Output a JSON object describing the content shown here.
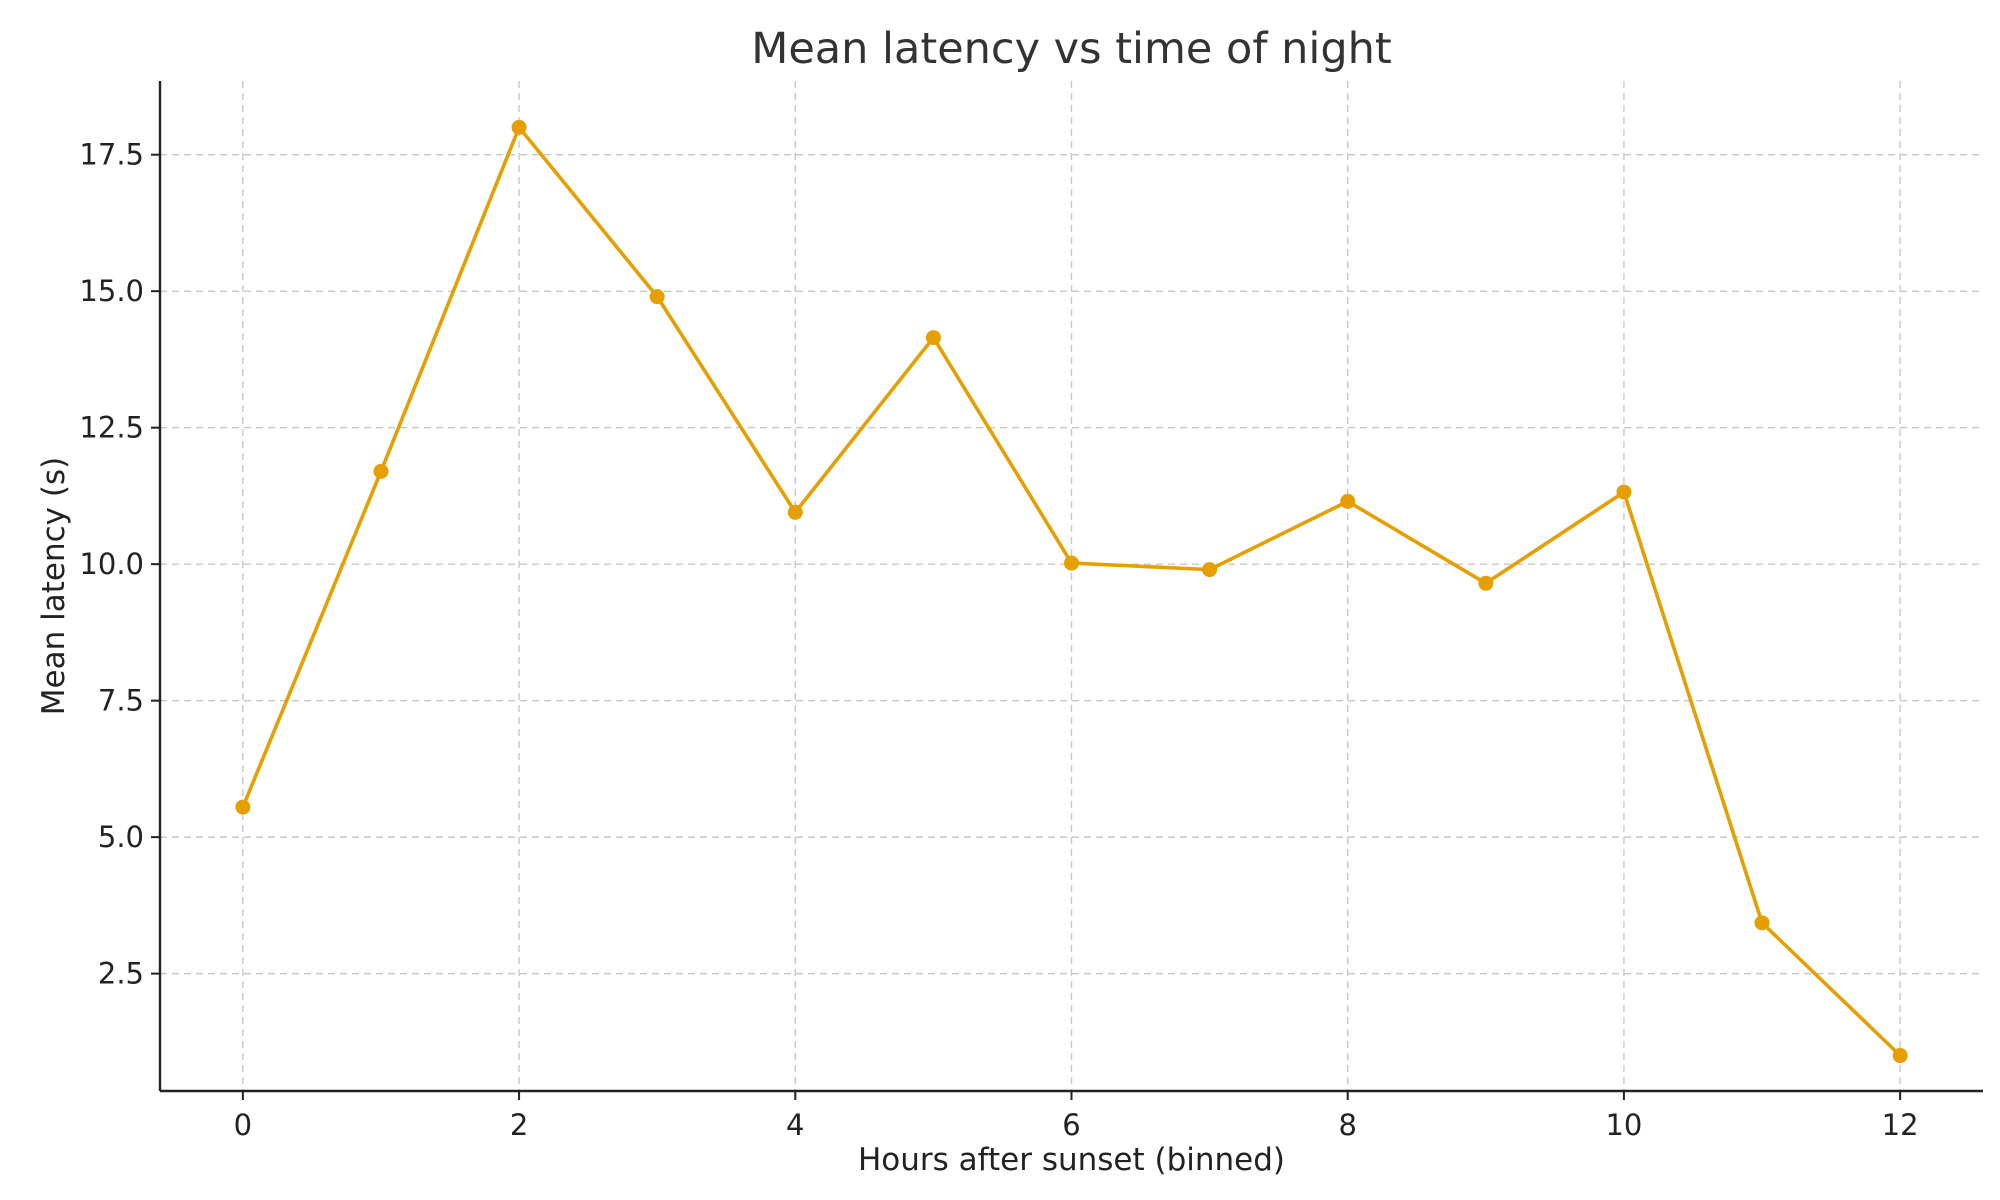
{
  "chart_data": {
    "type": "line",
    "title": "Mean latency vs time of night",
    "xlabel": "Hours after sunset (binned)",
    "ylabel": "Mean latency (s)",
    "xlim": [
      -0.6,
      12.6
    ],
    "ylim": [
      0.35,
      18.85
    ],
    "x_ticks": [
      0,
      2,
      4,
      6,
      8,
      10,
      12
    ],
    "x_tick_labels": [
      "0",
      "2",
      "4",
      "6",
      "8",
      "10",
      "12"
    ],
    "y_ticks": [
      2.5,
      5.0,
      7.5,
      10.0,
      12.5,
      15.0,
      17.5
    ],
    "y_tick_labels": [
      "2.5",
      "5.0",
      "7.5",
      "10.0",
      "12.5",
      "15.0",
      "17.5"
    ],
    "grid": true,
    "series": [
      {
        "name": "Mean latency",
        "color": "#E69F00",
        "x": [
          0,
          1,
          2,
          3,
          4,
          5,
          6,
          7,
          8,
          9,
          10,
          11,
          12
        ],
        "values": [
          5.55,
          11.7,
          18.0,
          14.9,
          10.95,
          14.15,
          10.02,
          9.9,
          11.15,
          9.65,
          11.32,
          3.43,
          1.0
        ]
      }
    ]
  }
}
